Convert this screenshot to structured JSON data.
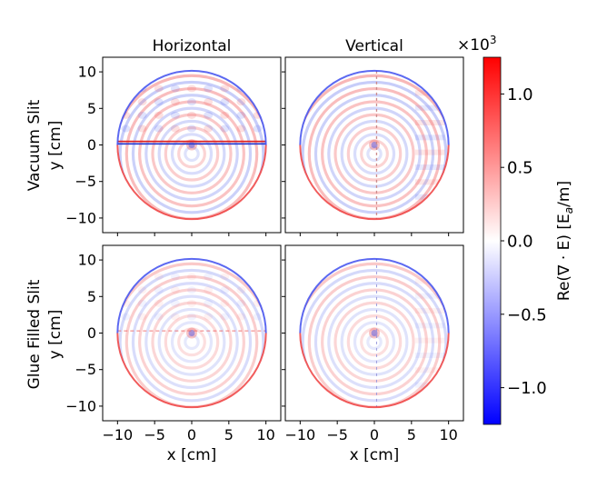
{
  "chart_data": {
    "type": "heatmap",
    "layout": "2x2 grid of field maps sharing one colorbar",
    "column_titles": [
      "Horizontal",
      "Vertical"
    ],
    "row_labels": [
      {
        "label": "Vacuum Slit",
        "ylabel": "y [cm]"
      },
      {
        "label": "Glue Filled Slit",
        "ylabel": "y [cm]"
      }
    ],
    "xlabel": "x [cm]",
    "xlim": [
      -12,
      12
    ],
    "ylim": [
      -12,
      12
    ],
    "xticks": [
      -10,
      -5,
      0,
      5,
      10
    ],
    "yticks": [
      10,
      5,
      0,
      -5,
      -10
    ],
    "domain_radius_cm": 10,
    "panels": [
      {
        "row": "Vacuum Slit",
        "column": "Horizontal",
        "slit": "horizontal",
        "slit_fill": "vacuum",
        "slit_y_cm": 0.3
      },
      {
        "row": "Vacuum Slit",
        "column": "Vertical",
        "slit": "vertical",
        "slit_fill": "vacuum",
        "slit_x_cm": 0.3
      },
      {
        "row": "Glue Filled Slit",
        "column": "Horizontal",
        "slit": "horizontal",
        "slit_fill": "glue",
        "slit_y_cm": 0.3
      },
      {
        "row": "Glue Filled Slit",
        "column": "Vertical",
        "slit": "vertical",
        "slit_fill": "glue",
        "slit_x_cm": 0.3
      }
    ],
    "colorbar": {
      "label": "Re(∇ · E) [E",
      "label_sub": "a",
      "label_end": "/m]",
      "min": -1.25,
      "max": 1.25,
      "ticks": [
        1.0,
        0.5,
        0.0,
        -0.5,
        -1.0
      ],
      "tick_labels": [
        "1.0",
        "0.5",
        "0.0",
        "−0.5",
        "−1.0"
      ],
      "multiplier_base": "×10",
      "multiplier_exponent": "3",
      "cmap": "bwr",
      "color_low": "#0000ff",
      "color_mid": "#ffffff",
      "color_high": "#ff0000"
    }
  }
}
